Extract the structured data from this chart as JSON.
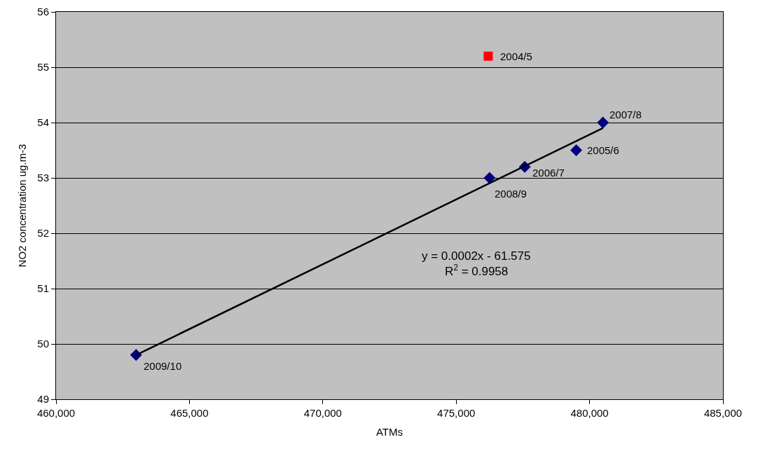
{
  "chart_data": {
    "type": "scatter",
    "xlabel": "ATMs",
    "ylabel": "NO2 concentration ug.m-3",
    "xlim": [
      460000,
      485000
    ],
    "xticks": [
      {
        "value": 460000,
        "label": "460,000"
      },
      {
        "value": 465000,
        "label": "465,000"
      },
      {
        "value": 470000,
        "label": "470,000"
      },
      {
        "value": 475000,
        "label": "475,000"
      },
      {
        "value": 480000,
        "label": "480,000"
      },
      {
        "value": 485000,
        "label": "485,000"
      }
    ],
    "ylim": [
      49,
      56
    ],
    "yticks": [
      49,
      50,
      51,
      52,
      53,
      54,
      55,
      56
    ],
    "grid": "y",
    "series": [
      {
        "marker": "diamond",
        "color": "#000080",
        "x": [
          463000,
          476250,
          477570,
          479500,
          480500
        ],
        "values": [
          49.8,
          53.0,
          53.2,
          53.5,
          54.0
        ]
      },
      {
        "marker": "square",
        "color": "#ff0000",
        "x": [
          476200
        ],
        "values": [
          55.2
        ]
      },
      {
        "type": "line",
        "marker": "none",
        "line_style": "solid",
        "color": "#000000",
        "x": [
          463000,
          480500
        ],
        "values": [
          49.8,
          53.9
        ]
      }
    ],
    "annotations": [
      {
        "text": "2009/10",
        "x": 463000,
        "y": 49.8
      },
      {
        "text": "2008/9",
        "x": 476250,
        "y": 53.0
      },
      {
        "text": "2006/7",
        "x": 477570,
        "y": 53.2
      },
      {
        "text": "2005/6",
        "x": 479500,
        "y": 53.5
      },
      {
        "text": "2007/8",
        "x": 480500,
        "y": 54.0
      },
      {
        "text": "2004/5",
        "x": 476200,
        "y": 55.2
      },
      "y = 0.0002x - 61.575",
      "R$^{2}$ = 0.9958"
    ]
  }
}
